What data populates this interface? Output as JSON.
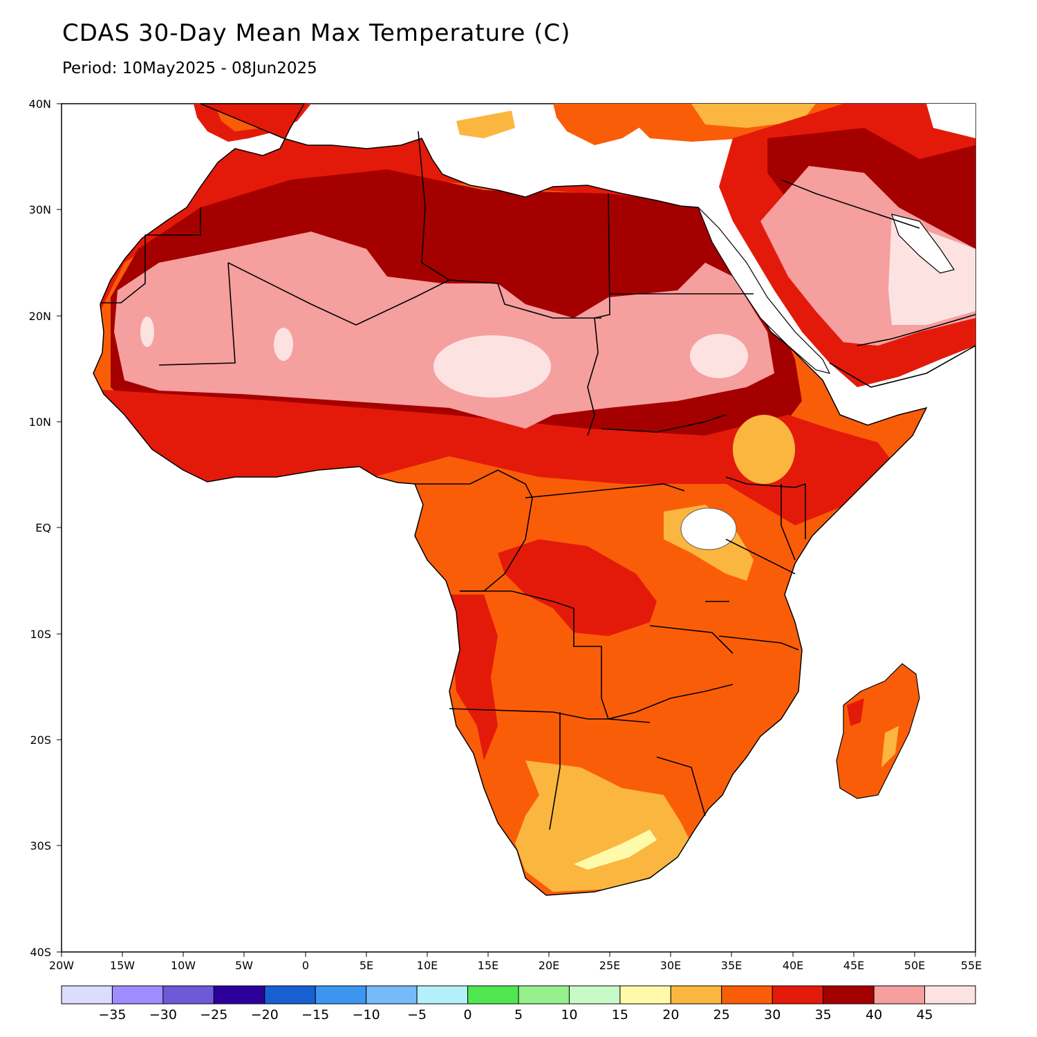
{
  "title": "CDAS 30-Day Mean Max Temperature (C)",
  "subtitle": "Period: 10May2025 - 08Jun2025",
  "map": {
    "lon_range": [
      -20,
      55
    ],
    "lat_range": [
      -40,
      40
    ],
    "lat_ticks": [
      "40N",
      "30N",
      "20N",
      "10N",
      "EQ",
      "10S",
      "20S",
      "30S",
      "40S"
    ],
    "lon_ticks": [
      "20W",
      "15W",
      "10W",
      "5W",
      "0",
      "5E",
      "10E",
      "15E",
      "20E",
      "25E",
      "30E",
      "35E",
      "40E",
      "45E",
      "50E",
      "55E"
    ],
    "ocean_color": "#ffffff",
    "field_regions": [
      {
        "name": "west-africa-30-35",
        "color": "#e31a0a"
      },
      {
        "name": "sahara-35-40",
        "color": "#a50000"
      },
      {
        "name": "sahel-40-45",
        "color": "#f59f9f"
      },
      {
        "name": "hot-spots-45-plus",
        "color": "#fde2e2"
      },
      {
        "name": "central-africa-25-30",
        "color": "#fa5d08"
      },
      {
        "name": "highlands-20-25",
        "color": "#fbb640"
      }
    ]
  },
  "colorbar": {
    "colors": [
      "#dcdcff",
      "#a08cff",
      "#6e5ad8",
      "#2d009b",
      "#1660d2",
      "#3c96f0",
      "#78b9fa",
      "#b4f0fa",
      "#50e650",
      "#96f08c",
      "#c8fac8",
      "#fffaaa",
      "#fbb640",
      "#fa5d08",
      "#e31a0a",
      "#a50000",
      "#f59f9f",
      "#fde2e2"
    ],
    "labels": [
      "-35",
      "-30",
      "-25",
      "-20",
      "-15",
      "-10",
      "-5",
      "0",
      "5",
      "10",
      "15",
      "20",
      "25",
      "30",
      "35",
      "40",
      "45"
    ]
  }
}
